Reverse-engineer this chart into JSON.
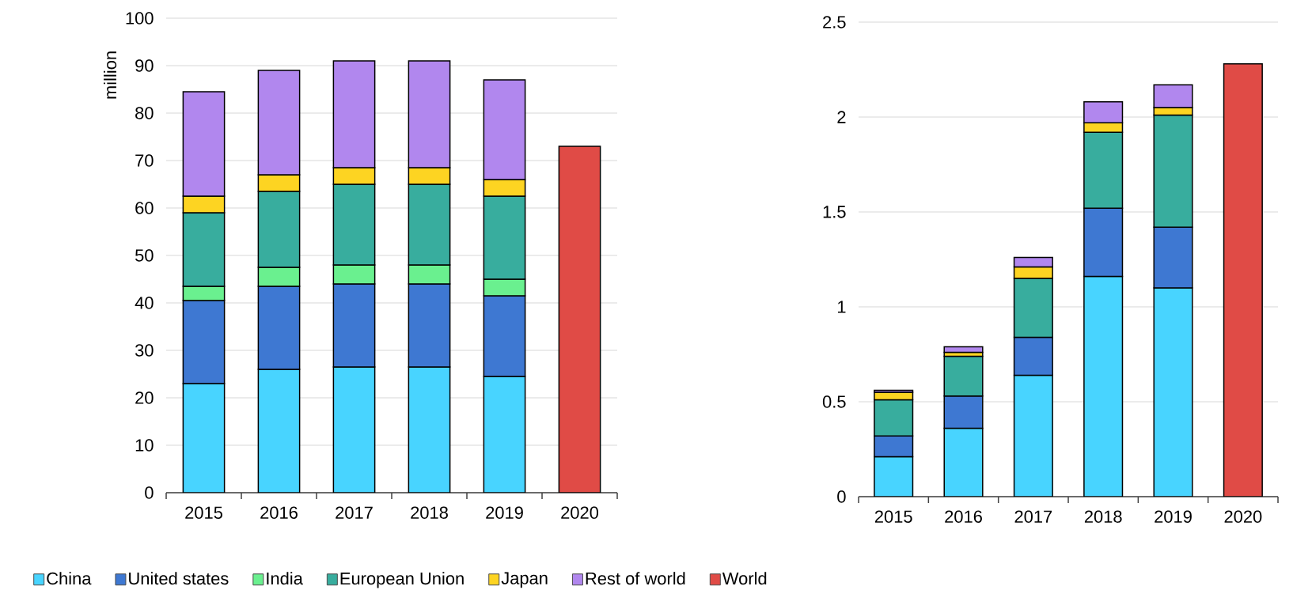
{
  "chart_data": [
    {
      "type": "bar",
      "stacked": true,
      "ylabel": "million",
      "categories": [
        "2015",
        "2016",
        "2017",
        "2018",
        "2019",
        "2020"
      ],
      "ylim": [
        0,
        100
      ],
      "yticks": [
        0,
        10,
        20,
        30,
        40,
        50,
        60,
        70,
        80,
        90,
        100
      ],
      "grid": "y",
      "legend": "bottom",
      "series": [
        {
          "name": "China",
          "color": "#48d4ff",
          "values": [
            23,
            26,
            26.5,
            26.5,
            24.5,
            null
          ]
        },
        {
          "name": "United states",
          "color": "#3e78d2",
          "values": [
            17.5,
            17.5,
            17.5,
            17.5,
            17,
            null
          ]
        },
        {
          "name": "India",
          "color": "#6af08f",
          "values": [
            3,
            4,
            4,
            4,
            3.5,
            null
          ]
        },
        {
          "name": "European Union",
          "color": "#38ad9e",
          "values": [
            15.5,
            16,
            17,
            17,
            17.5,
            null
          ]
        },
        {
          "name": "Japan",
          "color": "#fdd422",
          "values": [
            3.5,
            3.5,
            3.5,
            3.5,
            3.5,
            null
          ]
        },
        {
          "name": "Rest of world",
          "color": "#b187ee",
          "values": [
            22,
            22,
            22.5,
            22.5,
            21,
            null
          ]
        },
        {
          "name": "World",
          "color": "#e04b46",
          "values": [
            null,
            null,
            null,
            null,
            null,
            73
          ]
        }
      ]
    },
    {
      "type": "bar",
      "stacked": true,
      "categories": [
        "2015",
        "2016",
        "2017",
        "2018",
        "2019",
        "2020"
      ],
      "ylim": [
        0,
        2.5
      ],
      "yticks": [
        0,
        0.5,
        1,
        1.5,
        2,
        2.5
      ],
      "grid": "y",
      "series": [
        {
          "color": "#48d4ff",
          "values": [
            0.21,
            0.36,
            0.64,
            1.16,
            1.1,
            null
          ]
        },
        {
          "color": "#3e78d2",
          "values": [
            0.11,
            0.17,
            0.2,
            0.36,
            0.32,
            null
          ]
        },
        {
          "color": "#38ad9e",
          "values": [
            0.19,
            0.21,
            0.31,
            0.4,
            0.59,
            null
          ]
        },
        {
          "color": "#fdd422",
          "values": [
            0.04,
            0.02,
            0.06,
            0.05,
            0.04,
            null
          ]
        },
        {
          "color": "#b187ee",
          "values": [
            0.01,
            0.03,
            0.05,
            0.11,
            0.12,
            null
          ]
        },
        {
          "color": "#e04b46",
          "values": [
            null,
            null,
            null,
            null,
            null,
            2.28
          ]
        }
      ]
    }
  ]
}
